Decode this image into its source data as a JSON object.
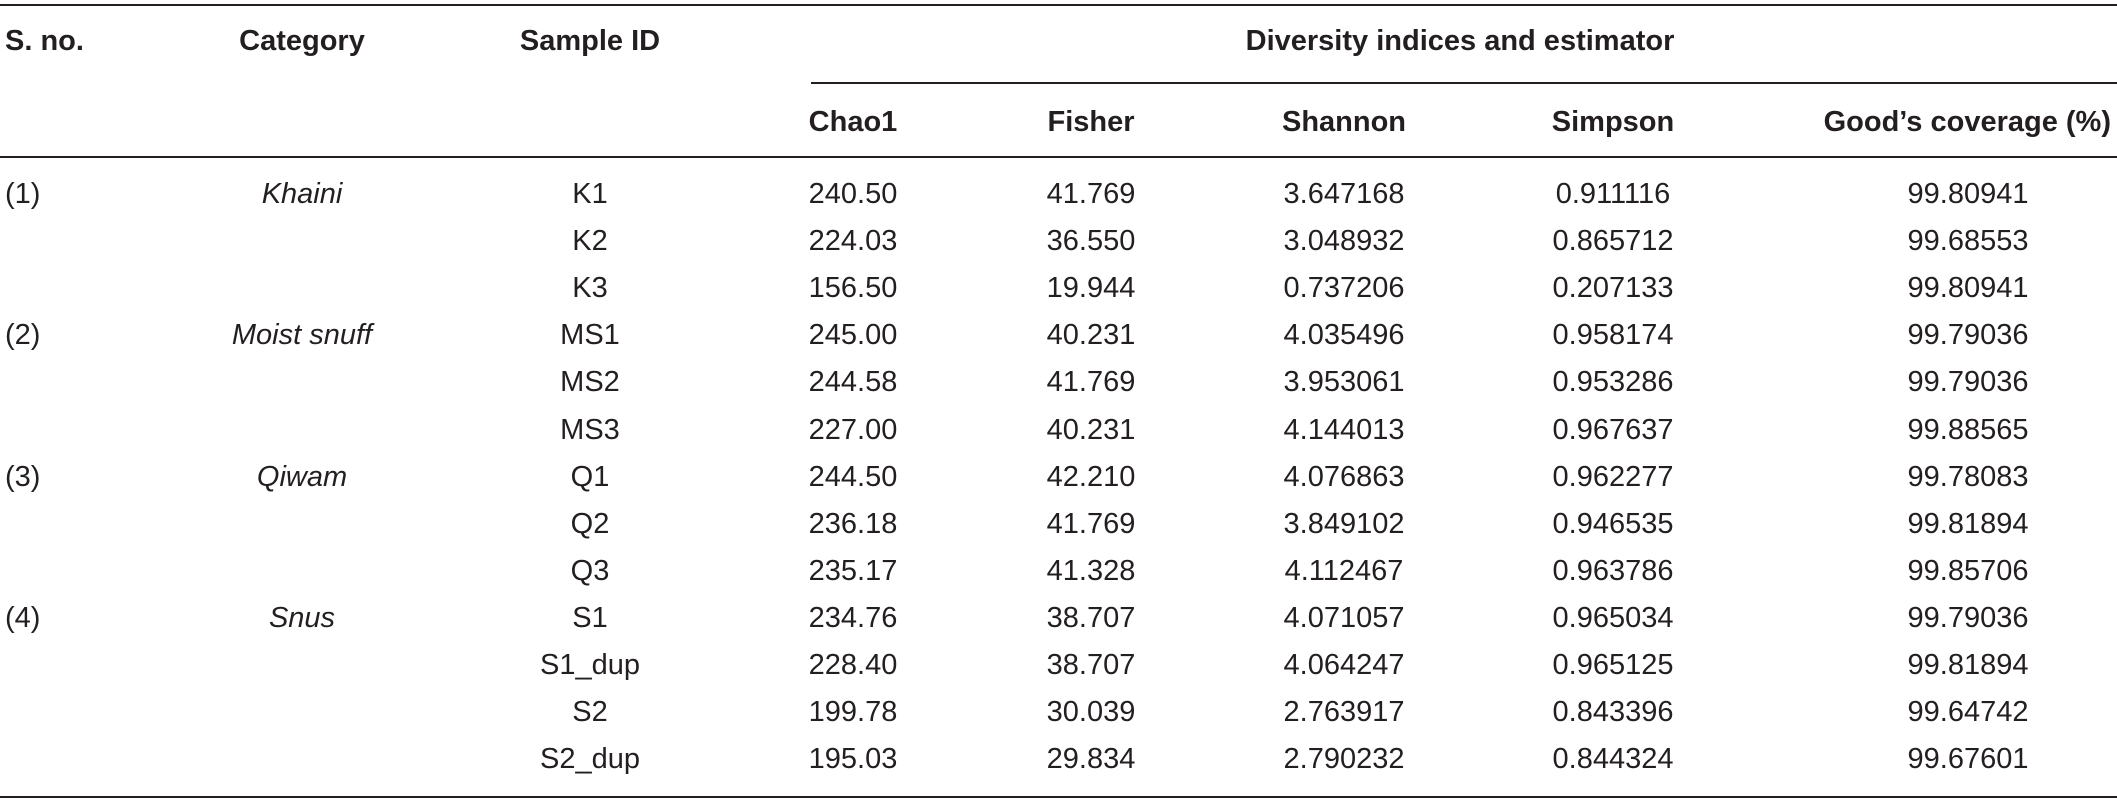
{
  "table": {
    "headers": {
      "sno": "S. no.",
      "category": "Category",
      "sample_id": "Sample ID",
      "group": "Diversity indices and estimator",
      "chao1": "Chao1",
      "fisher": "Fisher",
      "shannon": "Shannon",
      "simpson": "Simpson",
      "goods": "Good’s coverage (%)"
    },
    "groups": [
      {
        "sno": "(1)",
        "category": "Khaini"
      },
      {
        "sno": "(2)",
        "category": "Moist snuff"
      },
      {
        "sno": "(3)",
        "category": "Qiwam"
      },
      {
        "sno": "(4)",
        "category": "Snus"
      }
    ],
    "rows": [
      {
        "id": "K1",
        "chao1": "240.50",
        "fisher": "41.769",
        "shannon": "3.647168",
        "simpson": "0.911116",
        "goods": "99.80941"
      },
      {
        "id": "K2",
        "chao1": "224.03",
        "fisher": "36.550",
        "shannon": "3.048932",
        "simpson": "0.865712",
        "goods": "99.68553"
      },
      {
        "id": "K3",
        "chao1": "156.50",
        "fisher": "19.944",
        "shannon": "0.737206",
        "simpson": "0.207133",
        "goods": "99.80941"
      },
      {
        "id": "MS1",
        "chao1": "245.00",
        "fisher": "40.231",
        "shannon": "4.035496",
        "simpson": "0.958174",
        "goods": "99.79036"
      },
      {
        "id": "MS2",
        "chao1": "244.58",
        "fisher": "41.769",
        "shannon": "3.953061",
        "simpson": "0.953286",
        "goods": "99.79036"
      },
      {
        "id": "MS3",
        "chao1": "227.00",
        "fisher": "40.231",
        "shannon": "4.144013",
        "simpson": "0.967637",
        "goods": "99.88565"
      },
      {
        "id": "Q1",
        "chao1": "244.50",
        "fisher": "42.210",
        "shannon": "4.076863",
        "simpson": "0.962277",
        "goods": "99.78083"
      },
      {
        "id": "Q2",
        "chao1": "236.18",
        "fisher": "41.769",
        "shannon": "3.849102",
        "simpson": "0.946535",
        "goods": "99.81894"
      },
      {
        "id": "Q3",
        "chao1": "235.17",
        "fisher": "41.328",
        "shannon": "4.112467",
        "simpson": "0.963786",
        "goods": "99.85706"
      },
      {
        "id": "S1",
        "chao1": "234.76",
        "fisher": "38.707",
        "shannon": "4.071057",
        "simpson": "0.965034",
        "goods": "99.79036"
      },
      {
        "id": "S1_dup",
        "chao1": "228.40",
        "fisher": "38.707",
        "shannon": "4.064247",
        "simpson": "0.965125",
        "goods": "99.81894"
      },
      {
        "id": "S2",
        "chao1": "199.78",
        "fisher": "30.039",
        "shannon": "2.763917",
        "simpson": "0.843396",
        "goods": "99.64742"
      },
      {
        "id": "S2_dup",
        "chao1": "195.03",
        "fisher": "29.834",
        "shannon": "2.790232",
        "simpson": "0.844324",
        "goods": "99.67601"
      }
    ]
  }
}
